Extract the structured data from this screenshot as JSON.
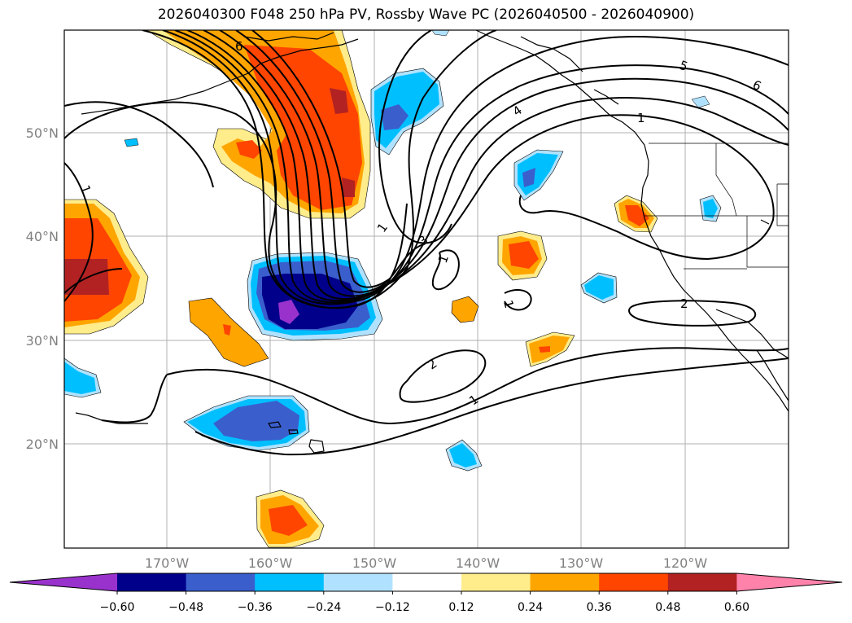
{
  "title": "2026040300 F048 250 hPa PV, Rossby Wave PC (2026040500 - 2026040900)",
  "map": {
    "lat_labels": [
      "50°N",
      "40°N",
      "30°N",
      "20°N"
    ],
    "lon_labels": [
      "170°W",
      "160°W",
      "150°W",
      "140°W",
      "130°W",
      "120°W"
    ]
  },
  "contour_labels": [
    "6",
    "1",
    "4",
    "5",
    "6",
    "1",
    "1",
    "3",
    "1",
    "1",
    "2",
    "2",
    "1"
  ],
  "colorbar": {
    "ticks": [
      "−0.60",
      "−0.48",
      "−0.36",
      "−0.24",
      "−0.12",
      "0.12",
      "0.24",
      "0.36",
      "0.48",
      "0.60"
    ],
    "colors": [
      "#9932cc",
      "#00008b",
      "#3a5fcd",
      "#00bfff",
      "#b0e2ff",
      "#ffffff",
      "#ffec8b",
      "#ffa500",
      "#ff4500",
      "#b22222",
      "#ff82ab"
    ]
  },
  "colors": {
    "neg_strong": "#00008b",
    "neg_med": "#3a5fcd",
    "neg_weak": "#00bfff",
    "neg_faint": "#b0e2ff",
    "pos_faint": "#ffec8b",
    "pos_weak": "#ffa500",
    "pos_med": "#ff4500",
    "pos_strong": "#b22222",
    "neg_extreme": "#9932cc"
  }
}
